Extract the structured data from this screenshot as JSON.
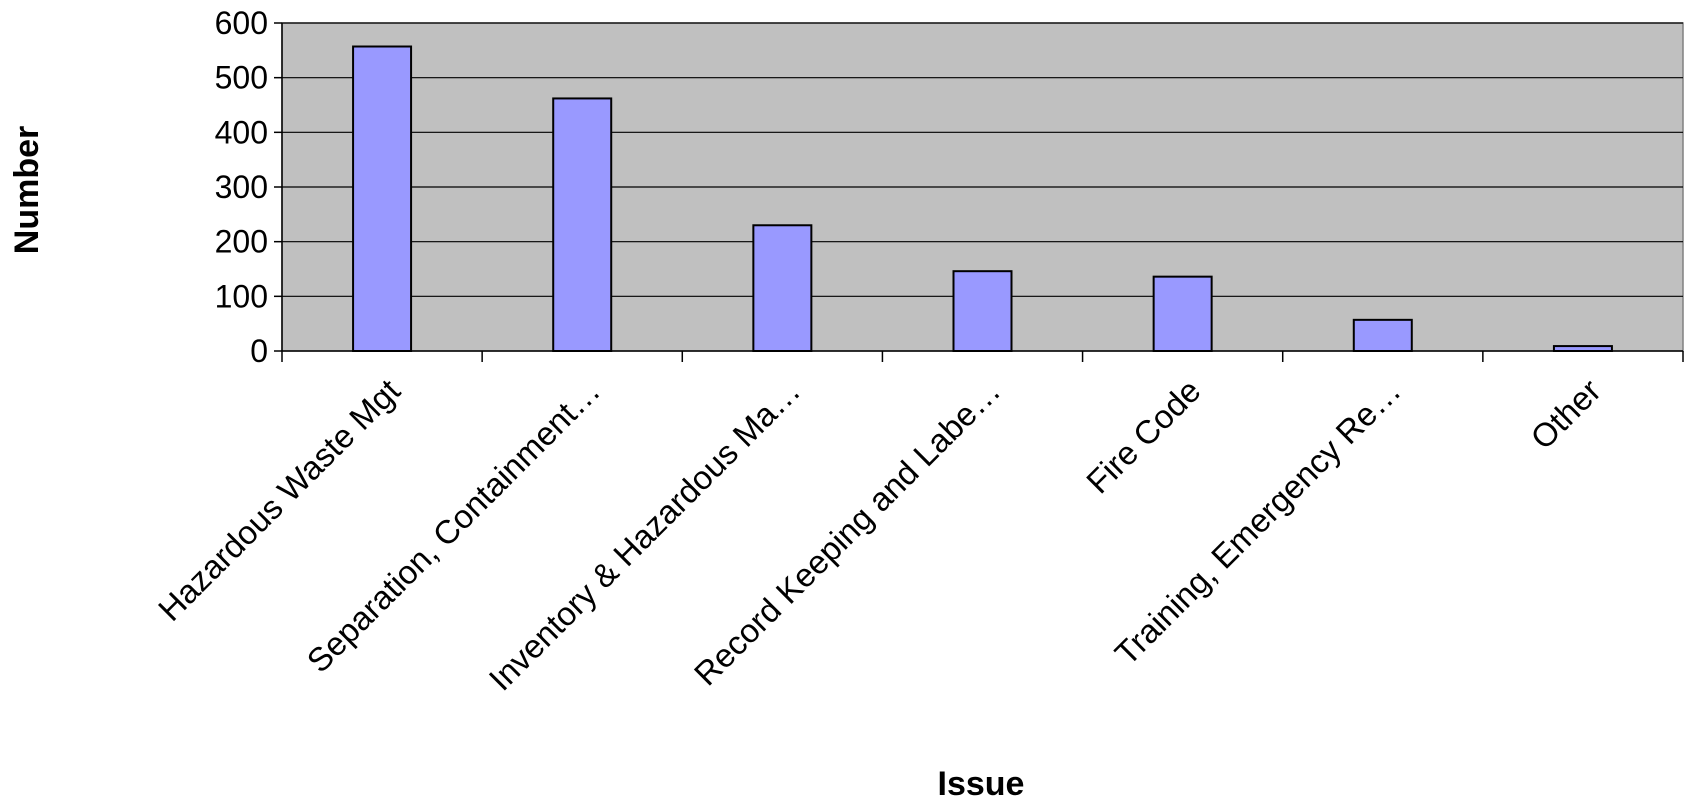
{
  "chart_data": {
    "type": "bar",
    "title": "",
    "xlabel": "Issue",
    "ylabel": "Number",
    "ylim": [
      0,
      600
    ],
    "yticks": [
      0,
      100,
      200,
      300,
      400,
      500,
      600
    ],
    "grid": "horizontal",
    "legend": "none",
    "categories": [
      "Hazardous Waste Mgt",
      "Separation, Containment…",
      "Inventory & Hazardous Ma…",
      "Record Keeping and Labe…",
      "Fire Code",
      "Training, Emergency Re…",
      "Other"
    ],
    "values": [
      557,
      462,
      230,
      146,
      136,
      57,
      9
    ]
  },
  "colors": {
    "plot_background": "#c0c0c0",
    "bar_fill": "#9999ff",
    "bar_stroke": "#000000",
    "gridline": "#000000"
  }
}
